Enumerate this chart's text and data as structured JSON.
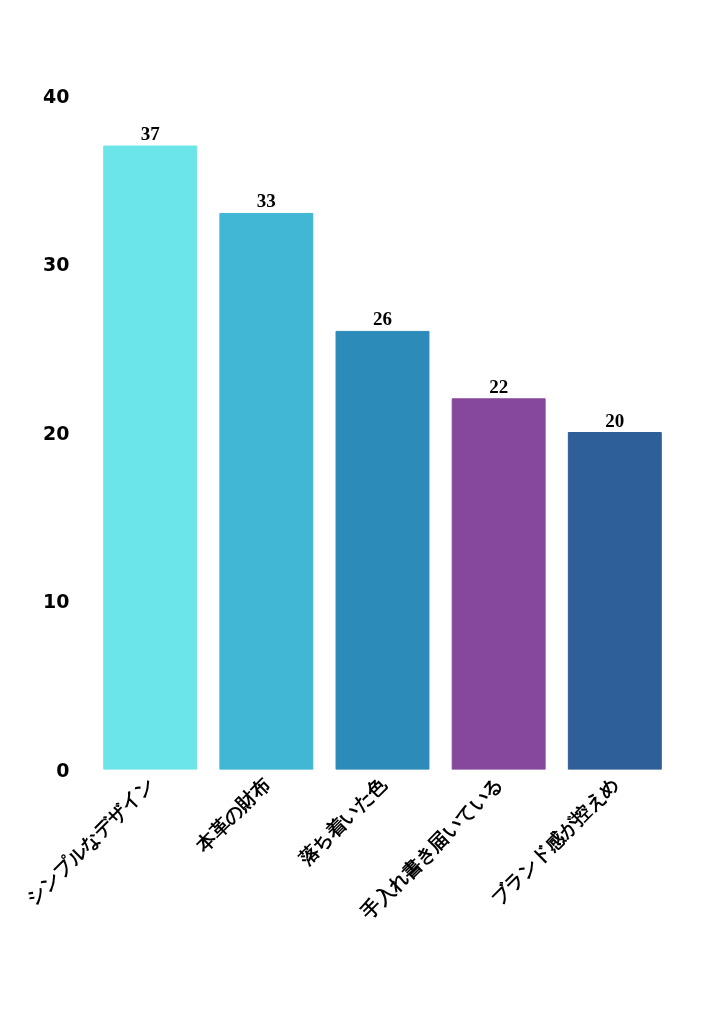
{
  "chart_data": {
    "type": "bar",
    "categories": [
      "シンプルなデザイン",
      "本革の財布",
      "落ち着いた色",
      "手入れ書き届いている",
      "ブランド感が控えめ"
    ],
    "values": [
      37,
      33,
      26,
      22,
      20
    ],
    "colors": [
      "#6ce5e8",
      "#41b6d5",
      "#2d8bba",
      "#86489b",
      "#2f5f98"
    ],
    "ylim": [
      0,
      40
    ],
    "yticks": [
      0,
      10,
      20,
      30,
      40
    ],
    "grid": false,
    "data_labels": true
  }
}
